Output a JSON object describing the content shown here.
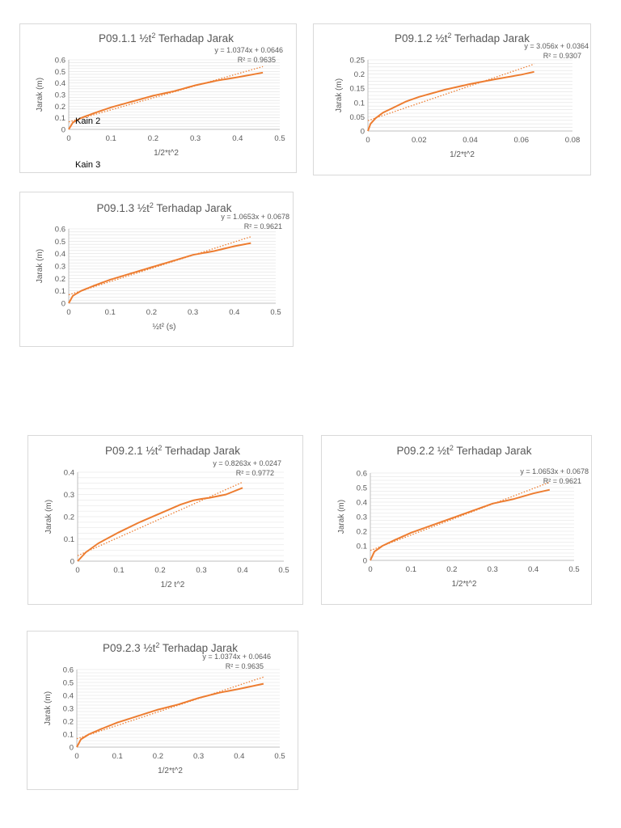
{
  "page_labels": {
    "kain2": "Kain 2",
    "kain3": "Kain 3"
  },
  "chart_data": [
    {
      "type": "line",
      "title_prefix": "P09.1.1 ½t",
      "title_sup": "2",
      "title_suffix": " Terhadap Jarak",
      "xlabel": "1/2*t^2",
      "ylabel": "Jarak (m)",
      "xlim": [
        0,
        0.5
      ],
      "ylim": [
        0,
        0.6
      ],
      "xticks": [
        "0",
        "0.1",
        "0.2",
        "0.3",
        "0.4",
        "0.5"
      ],
      "yticks": [
        "0",
        "0.1",
        "0.2",
        "0.3",
        "0.4",
        "0.5",
        "0.6"
      ],
      "series": [
        {
          "name": "Jarak",
          "x": [
            0,
            0.01,
            0.03,
            0.06,
            0.1,
            0.15,
            0.2,
            0.25,
            0.3,
            0.35,
            0.4,
            0.46
          ],
          "y": [
            0,
            0.06,
            0.1,
            0.14,
            0.19,
            0.24,
            0.29,
            0.33,
            0.38,
            0.42,
            0.45,
            0.49
          ]
        }
      ],
      "trendline": {
        "slope": 1.0374,
        "intercept": 0.0646,
        "x_end": 0.46,
        "equation": "y = 1.0374x + 0.0646",
        "r2": "R² = 0.9635"
      }
    },
    {
      "type": "line",
      "title_prefix": "P09.1.2 ½t",
      "title_sup": "2",
      "title_suffix": " Terhadap Jarak",
      "xlabel": "1/2*t^2",
      "ylabel": "Jarak (m)",
      "xlim": [
        0,
        0.08
      ],
      "ylim": [
        0,
        0.25
      ],
      "xticks": [
        "0",
        "0.02",
        "0.04",
        "0.06",
        "0.08"
      ],
      "yticks": [
        "0",
        "0.05",
        "0.1",
        "0.15",
        "0.2",
        "0.25"
      ],
      "series": [
        {
          "name": "Jarak",
          "x": [
            0,
            0.001,
            0.003,
            0.006,
            0.01,
            0.015,
            0.02,
            0.03,
            0.04,
            0.05,
            0.06,
            0.065
          ],
          "y": [
            0,
            0.025,
            0.045,
            0.065,
            0.082,
            0.104,
            0.12,
            0.145,
            0.165,
            0.182,
            0.198,
            0.208
          ]
        }
      ],
      "trendline": {
        "slope": 3.056,
        "intercept": 0.0364,
        "x_end": 0.065,
        "equation": "y = 3.056x + 0.0364",
        "r2": "R² = 0.9307"
      }
    },
    {
      "type": "line",
      "title_prefix": "P09.1.3 ½t",
      "title_sup": "2",
      "title_suffix": " Terhadap Jarak",
      "xlabel": "½t² (s)",
      "ylabel": "Jarak (m)",
      "xlim": [
        0,
        0.5
      ],
      "ylim": [
        0,
        0.6
      ],
      "xticks": [
        "0",
        "0.1",
        "0.2",
        "0.3",
        "0.4",
        "0.5"
      ],
      "yticks": [
        "0",
        "0.1",
        "0.2",
        "0.3",
        "0.4",
        "0.5",
        "0.6"
      ],
      "series": [
        {
          "name": "Jarak",
          "x": [
            0,
            0.01,
            0.03,
            0.06,
            0.1,
            0.15,
            0.2,
            0.25,
            0.3,
            0.35,
            0.4,
            0.44
          ],
          "y": [
            0,
            0.06,
            0.1,
            0.14,
            0.19,
            0.24,
            0.29,
            0.34,
            0.39,
            0.42,
            0.46,
            0.485
          ]
        }
      ],
      "trendline": {
        "slope": 1.0653,
        "intercept": 0.0678,
        "x_end": 0.44,
        "equation": "y = 1.0653x + 0.0678",
        "r2": "R² = 0.9621"
      }
    },
    {
      "type": "line",
      "title_prefix": "P09.2.1 ½t",
      "title_sup": "2",
      "title_suffix": " Terhadap Jarak",
      "xlabel": "1/2 t^2",
      "ylabel": "Jarak (m)",
      "xlim": [
        0,
        0.5
      ],
      "ylim": [
        0,
        0.4
      ],
      "xticks": [
        "0",
        "0.1",
        "0.2",
        "0.3",
        "0.4",
        "0.5"
      ],
      "yticks": [
        "0",
        "0.1",
        "0.2",
        "0.3",
        "0.4"
      ],
      "series": [
        {
          "name": "Jarak",
          "x": [
            0,
            0.02,
            0.05,
            0.1,
            0.15,
            0.2,
            0.25,
            0.28,
            0.3,
            0.32,
            0.36,
            0.4
          ],
          "y": [
            0,
            0.04,
            0.08,
            0.13,
            0.175,
            0.215,
            0.255,
            0.273,
            0.28,
            0.285,
            0.3,
            0.33
          ]
        }
      ],
      "trendline": {
        "slope": 0.8263,
        "intercept": 0.0247,
        "x_end": 0.4,
        "equation": "y = 0.8263x + 0.0247",
        "r2": "R² = 0.9772"
      }
    },
    {
      "type": "line",
      "title_prefix": "P09.2.2 ½t",
      "title_sup": "2",
      "title_suffix": " Terhadap Jarak",
      "xlabel": "1/2*t^2",
      "ylabel": "Jarak (m)",
      "xlim": [
        0,
        0.5
      ],
      "ylim": [
        0,
        0.6
      ],
      "xticks": [
        "0",
        "0.1",
        "0.2",
        "0.3",
        "0.4",
        "0.5"
      ],
      "yticks": [
        "0",
        "0.1",
        "0.2",
        "0.3",
        "0.4",
        "0.5",
        "0.6"
      ],
      "series": [
        {
          "name": "Jarak",
          "x": [
            0,
            0.01,
            0.03,
            0.06,
            0.1,
            0.15,
            0.2,
            0.25,
            0.3,
            0.35,
            0.4,
            0.44
          ],
          "y": [
            0,
            0.06,
            0.1,
            0.14,
            0.19,
            0.24,
            0.29,
            0.34,
            0.39,
            0.42,
            0.46,
            0.485
          ]
        }
      ],
      "trendline": {
        "slope": 1.0653,
        "intercept": 0.0678,
        "x_end": 0.44,
        "equation": "y = 1.0653x + 0.0678",
        "r2": "R² = 0.9621"
      }
    },
    {
      "type": "line",
      "title_prefix": "P09.2.3 ½t",
      "title_sup": "2",
      "title_suffix": " Terhadap Jarak",
      "xlabel": "1/2*t^2",
      "ylabel": "Jarak (m)",
      "xlim": [
        0,
        0.5
      ],
      "ylim": [
        0,
        0.6
      ],
      "xticks": [
        "0",
        "0.1",
        "0.2",
        "0.3",
        "0.4",
        "0.5"
      ],
      "yticks": [
        "0",
        "0.1",
        "0.2",
        "0.3",
        "0.4",
        "0.5",
        "0.6"
      ],
      "series": [
        {
          "name": "Jarak",
          "x": [
            0,
            0.01,
            0.03,
            0.06,
            0.1,
            0.15,
            0.2,
            0.25,
            0.3,
            0.35,
            0.4,
            0.46
          ],
          "y": [
            0,
            0.06,
            0.1,
            0.14,
            0.19,
            0.24,
            0.29,
            0.33,
            0.38,
            0.42,
            0.45,
            0.49
          ]
        }
      ],
      "trendline": {
        "slope": 1.0374,
        "intercept": 0.0646,
        "x_end": 0.46,
        "equation": "y = 1.0374x + 0.0646",
        "r2": "R² = 0.9635"
      }
    }
  ]
}
